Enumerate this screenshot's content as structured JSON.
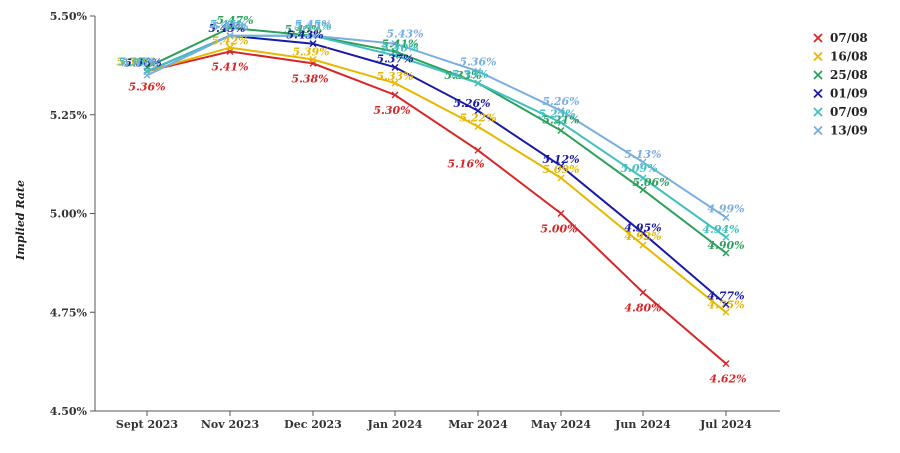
{
  "chart_data": {
    "type": "line",
    "categories": [
      "Sept 2023",
      "Nov 2023",
      "Dec 2023",
      "Jan 2024",
      "Mar 2024",
      "May 2024",
      "Jun 2024",
      "Jul 2024"
    ],
    "ylabel": "Implied Rate",
    "ylim": [
      4.5,
      5.5
    ],
    "yticks": [
      "4.50%",
      "4.75%",
      "5.00%",
      "5.25%",
      "5.50%"
    ],
    "legend_position": "top-right",
    "series": [
      {
        "name": "07/08",
        "color": "#d62728",
        "values": [
          5.36,
          5.41,
          5.38,
          5.3,
          5.16,
          5.0,
          4.8,
          4.62
        ],
        "labels": [
          "5.36%",
          "5.41%",
          "5.38%",
          "5.30%",
          "5.16%",
          "5.00%",
          "4.80%",
          "4.62%"
        ]
      },
      {
        "name": "16/08",
        "color": "#e6b800",
        "values": [
          5.36,
          5.42,
          5.39,
          5.33,
          5.22,
          5.09,
          4.92,
          4.75
        ],
        "labels": [
          "5.36%",
          "5.42%",
          "5.39%",
          "5.33%",
          "5.22%",
          "5.09%",
          "4.92%",
          "4.75%"
        ]
      },
      {
        "name": "25/08",
        "color": "#2ca05a",
        "values": [
          5.37,
          5.47,
          5.45,
          5.41,
          5.33,
          5.21,
          5.06,
          4.9
        ],
        "labels": [
          "5.37%",
          "5.47%",
          "5.45%",
          "5.41%",
          "5.33%",
          "5.21%",
          "5.06%",
          "4.90%"
        ]
      },
      {
        "name": "01/09",
        "color": "#1a1aa6",
        "values": [
          5.36,
          5.45,
          5.43,
          5.37,
          5.26,
          5.12,
          4.95,
          4.77
        ],
        "labels": [
          "5.36%",
          "5.45%",
          "5.43%",
          "5.37%",
          "5.26%",
          "5.12%",
          "4.95%",
          "4.77%"
        ]
      },
      {
        "name": "07/09",
        "color": "#40c0c0",
        "values": [
          5.36,
          5.45,
          5.45,
          5.4,
          5.33,
          5.23,
          5.09,
          4.94
        ],
        "labels": [
          "5.36%",
          "5.45%",
          "5.45%",
          "5.40%",
          "5.33%",
          "5.23%",
          "5.09%",
          "4.94%"
        ]
      },
      {
        "name": "13/09",
        "color": "#7aaee0",
        "values": [
          5.35,
          5.45,
          5.45,
          5.43,
          5.36,
          5.26,
          5.13,
          4.99
        ],
        "labels": [
          "5.35%",
          "5.45%",
          "5.45%",
          "5.43%",
          "5.36%",
          "5.26%",
          "5.13%",
          "4.99%"
        ]
      }
    ]
  }
}
